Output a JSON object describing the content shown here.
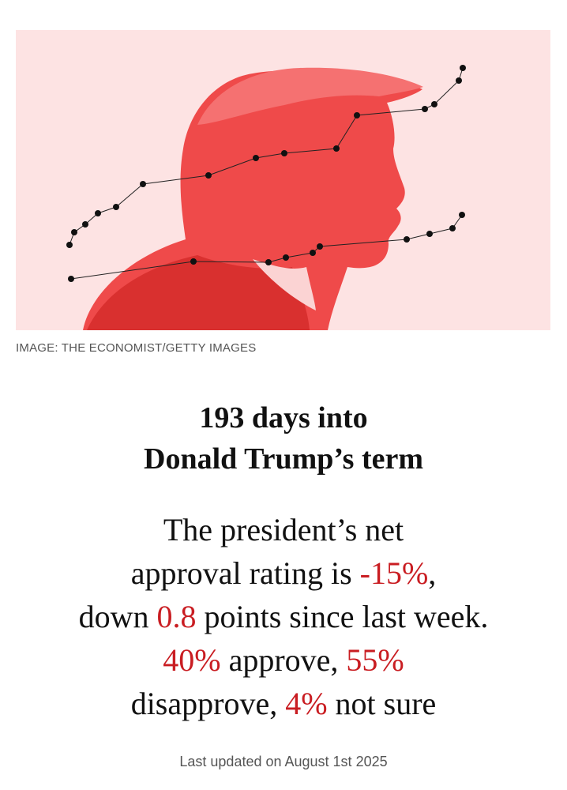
{
  "image": {
    "credit": "IMAGE: THE ECONOMIST/GETTY IMAGES",
    "colors": {
      "background": "#fde3e3",
      "portrait": "#ef4a4a",
      "portrait_dark": "#d9302f",
      "markers": "#111111"
    }
  },
  "headline": {
    "line1": "193 days into",
    "line2": "Donald Trump’s term"
  },
  "summary": {
    "l1": "The president’s net",
    "l2_pre": "approval rating is ",
    "net_approval": "-15%",
    "l2_post": ",",
    "l3_pre": "down ",
    "change": "0.8",
    "l3_post": " points since last week.",
    "approve": "40%",
    "l4_mid": " approve, ",
    "disapprove": "55%",
    "l5_pre": "disapprove, ",
    "not_sure": "4%",
    "l5_post": " not sure"
  },
  "accent_color": "#c91d22",
  "updated": "Last updated on August 1st 2025"
}
